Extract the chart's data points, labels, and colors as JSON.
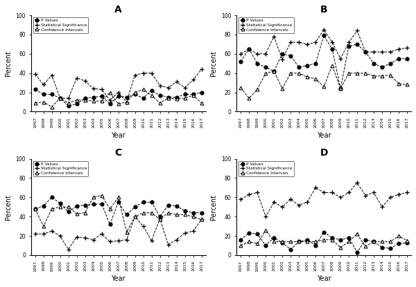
{
  "years": [
    1997,
    1998,
    1999,
    2000,
    2001,
    2002,
    2003,
    2004,
    2005,
    2006,
    2007,
    2008,
    2009,
    2010,
    2011,
    2012,
    2013,
    2014,
    2015,
    2016,
    2017
  ],
  "A": {
    "title": "A",
    "p_values": [
      23,
      18,
      18,
      14,
      6,
      8,
      14,
      15,
      16,
      8,
      16,
      15,
      18,
      14,
      22,
      17,
      15,
      15,
      18,
      18,
      20
    ],
    "stat_sig": [
      39,
      28,
      38,
      14,
      14,
      35,
      32,
      24,
      23,
      12,
      20,
      10,
      38,
      40,
      40,
      27,
      25,
      31,
      25,
      33,
      44
    ],
    "conf_int": [
      9,
      10,
      5,
      14,
      9,
      12,
      12,
      11,
      11,
      20,
      8,
      10,
      20,
      23,
      17,
      9,
      14,
      13,
      14,
      17,
      9
    ]
  },
  "B": {
    "title": "B",
    "p_values": [
      52,
      65,
      50,
      46,
      42,
      60,
      58,
      46,
      48,
      50,
      79,
      65,
      24,
      68,
      70,
      62,
      50,
      46,
      50,
      55,
      55
    ],
    "stat_sig": [
      60,
      65,
      60,
      60,
      78,
      54,
      72,
      72,
      70,
      72,
      85,
      72,
      55,
      72,
      84,
      62,
      62,
      62,
      62,
      65,
      66
    ],
    "conf_int": [
      25,
      14,
      23,
      40,
      42,
      24,
      40,
      40,
      36,
      34,
      26,
      48,
      24,
      40,
      40,
      40,
      37,
      37,
      38,
      29,
      28
    ]
  },
  "C": {
    "title": "C",
    "p_values": [
      48,
      51,
      60,
      54,
      45,
      51,
      52,
      53,
      53,
      32,
      55,
      42,
      50,
      55,
      55,
      40,
      52,
      51,
      46,
      44,
      44
    ],
    "stat_sig": [
      22,
      22,
      25,
      20,
      6,
      19,
      18,
      16,
      22,
      14,
      15,
      16,
      40,
      30,
      15,
      38,
      11,
      16,
      23,
      25,
      37
    ],
    "conf_int": [
      48,
      30,
      48,
      50,
      50,
      43,
      44,
      60,
      62,
      48,
      60,
      24,
      40,
      44,
      44,
      37,
      44,
      42,
      42,
      40,
      37
    ]
  },
  "D": {
    "title": "D",
    "p_values": [
      16,
      23,
      22,
      10,
      18,
      13,
      6,
      14,
      16,
      10,
      24,
      18,
      16,
      18,
      3,
      16,
      14,
      8,
      7,
      12,
      13
    ],
    "stat_sig": [
      58,
      63,
      65,
      40,
      55,
      50,
      58,
      52,
      55,
      70,
      65,
      65,
      60,
      65,
      75,
      62,
      65,
      50,
      60,
      63,
      65
    ],
    "conf_int": [
      10,
      14,
      12,
      26,
      14,
      14,
      14,
      14,
      14,
      14,
      16,
      16,
      8,
      14,
      22,
      9,
      14,
      14,
      14,
      20,
      15
    ]
  }
}
